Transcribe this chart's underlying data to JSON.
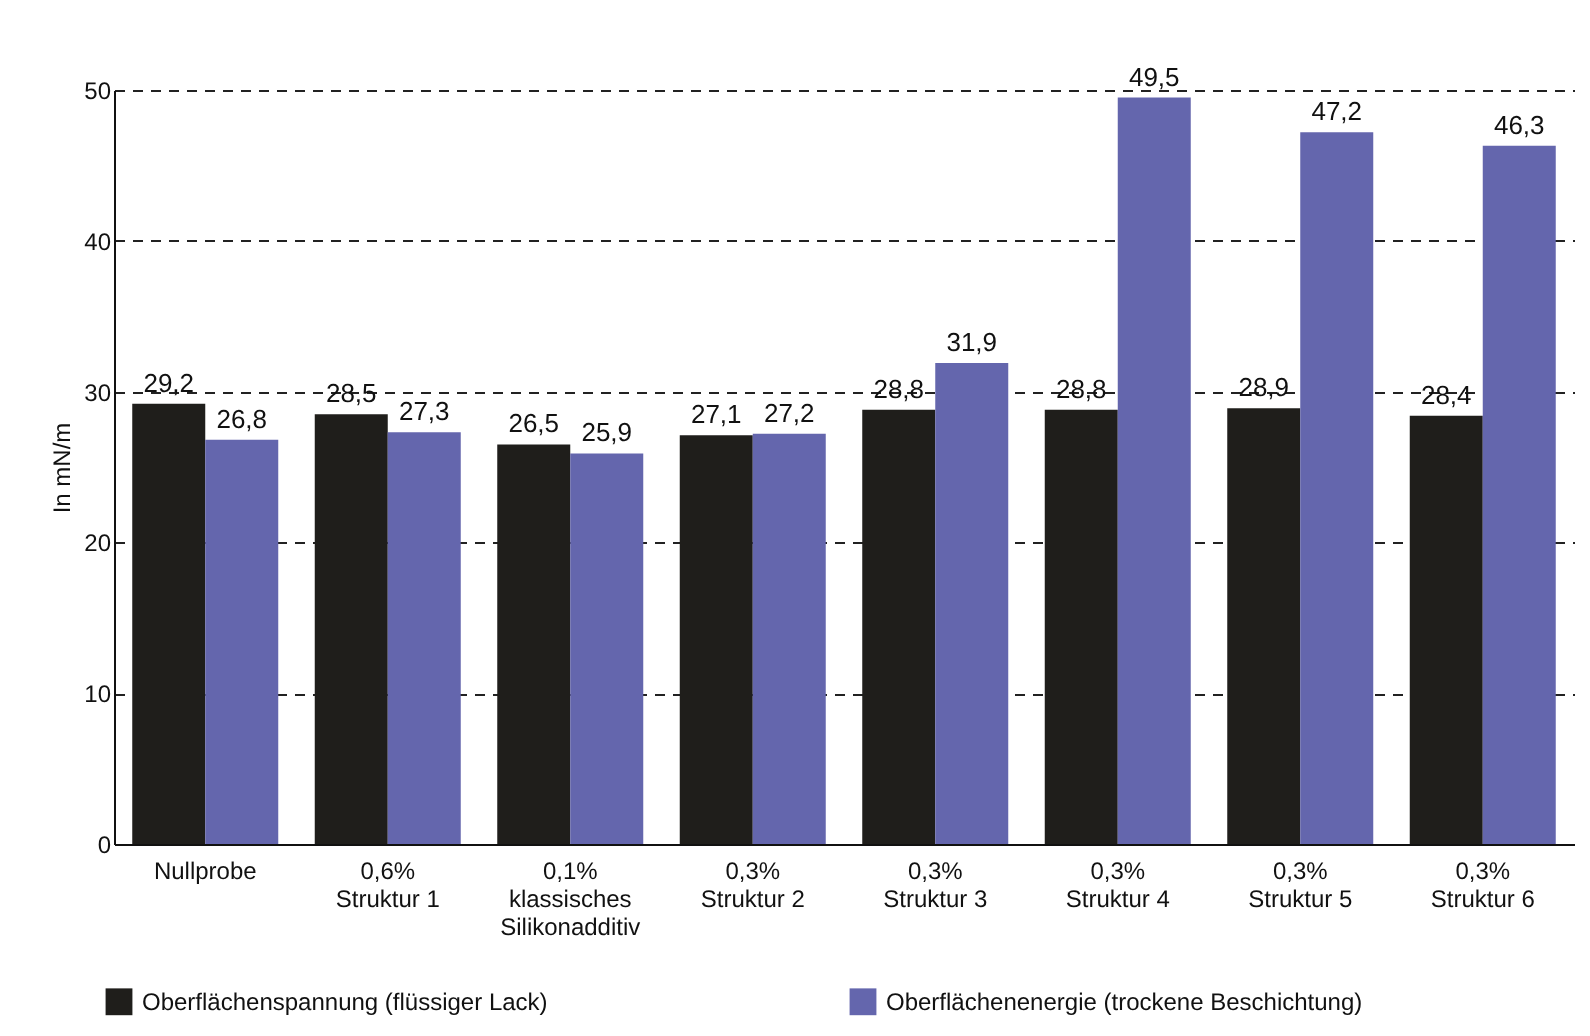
{
  "chart_data": {
    "type": "bar",
    "ylabel": "In mN/m",
    "categories": [
      "Nullprobe",
      "0,6%\nStruktur 1",
      "0,1%\nklassisches\nSilikonadditiv",
      "0,3%\nStruktur 2",
      "0,3%\nStruktur 3",
      "0,3%\nStruktur 4",
      "0,3%\nStruktur 5",
      "0,3%\nStruktur 6"
    ],
    "series": [
      {
        "name": "Oberflächenspannung (flüssiger Lack)",
        "color": "#1f1e1b",
        "values": [
          29.2,
          28.5,
          26.5,
          27.1,
          28.8,
          28.8,
          28.9,
          28.4
        ],
        "value_labels": [
          "29,2",
          "28,5",
          "26,5",
          "27,1",
          "28,8",
          "28,8",
          "28,9",
          "28,4"
        ]
      },
      {
        "name": "Oberflächenenergie (trockene Beschichtung)",
        "color": "#6466ad",
        "values": [
          26.8,
          27.3,
          25.9,
          27.2,
          31.9,
          49.5,
          47.2,
          46.3
        ],
        "value_labels": [
          "26,8",
          "27,3",
          "25,9",
          "27,2",
          "31,9",
          "49,5",
          "47,2",
          "46,3"
        ]
      }
    ],
    "ylim": [
      0,
      50
    ],
    "yticks": [
      0,
      10,
      20,
      30,
      40,
      50
    ],
    "grid": "y",
    "legend": "bottom"
  }
}
